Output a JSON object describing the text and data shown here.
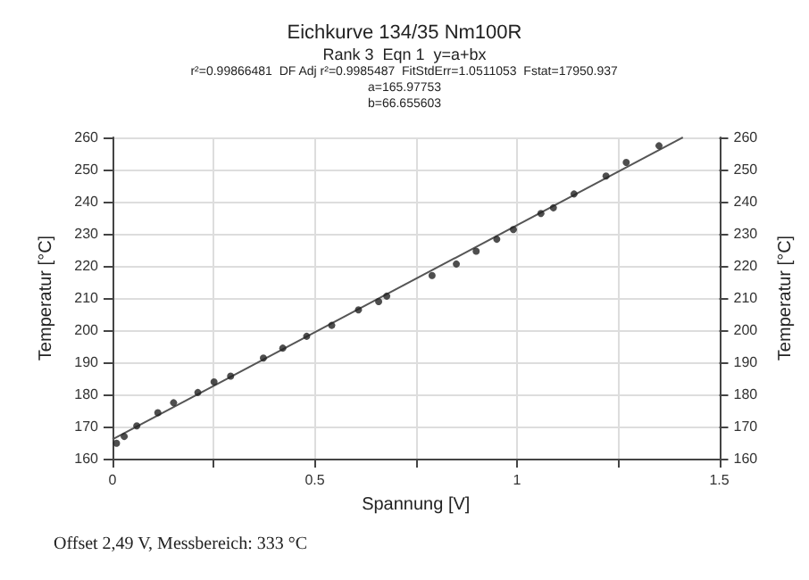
{
  "chart_data": {
    "type": "scatter",
    "title": "Eichkurve 134/35 Nm100R",
    "subtitle": "Rank 3  Eqn 1  y=a+bx",
    "xlabel": "Spannung [V]",
    "ylabel": "Temperatur [°C]",
    "y2label": "Temperatur [°C]",
    "annotations": [
      "r²=0.99866481  DF Adj r²=0.9985487  FitStdErr=1.0511053  Fstat=17950.937",
      "a=165.97753",
      "b=66.655603",
      "Offset 2,49 V, Messbereich: 333 °C"
    ],
    "series": [
      {
        "color": "#222222",
        "marker": "circle",
        "x": [
          0.01,
          0.029,
          0.06,
          0.112,
          0.151,
          0.211,
          0.251,
          0.292,
          0.373,
          0.421,
          0.48,
          0.542,
          0.608,
          0.658,
          0.678,
          0.79,
          0.85,
          0.899,
          0.95,
          0.991,
          1.059,
          1.09,
          1.141,
          1.22,
          1.27,
          1.351
        ],
        "values": [
          164.8,
          166.9,
          170.2,
          174.3,
          177.4,
          180.6,
          183.9,
          185.7,
          191.3,
          194.4,
          198.1,
          201.5,
          206.3,
          208.9,
          210.6,
          217.0,
          220.6,
          224.6,
          228.3,
          231.3,
          236.3,
          238.1,
          242.4,
          248.0,
          252.2,
          257.4
        ]
      },
      {
        "type": "line",
        "color": "#555555",
        "marker": "none",
        "x": [
          0,
          1.41
        ],
        "values": [
          166.0,
          260
        ]
      }
    ],
    "xlim": [
      0,
      1.5
    ],
    "xticks": [
      0,
      {
        "value": 0.25,
        "label": null
      },
      0.5,
      {
        "value": 0.75,
        "label": null
      },
      1,
      {
        "value": 1.25,
        "label": null
      },
      1.5
    ],
    "ylim": [
      160,
      260
    ],
    "yticks": [
      160,
      170,
      180,
      190,
      200,
      210,
      220,
      230,
      240,
      250,
      260
    ],
    "y2lim": [
      160,
      260
    ],
    "y2ticks": [
      160,
      170,
      180,
      190,
      200,
      210,
      220,
      230,
      240,
      250,
      260
    ],
    "grid": true
  }
}
